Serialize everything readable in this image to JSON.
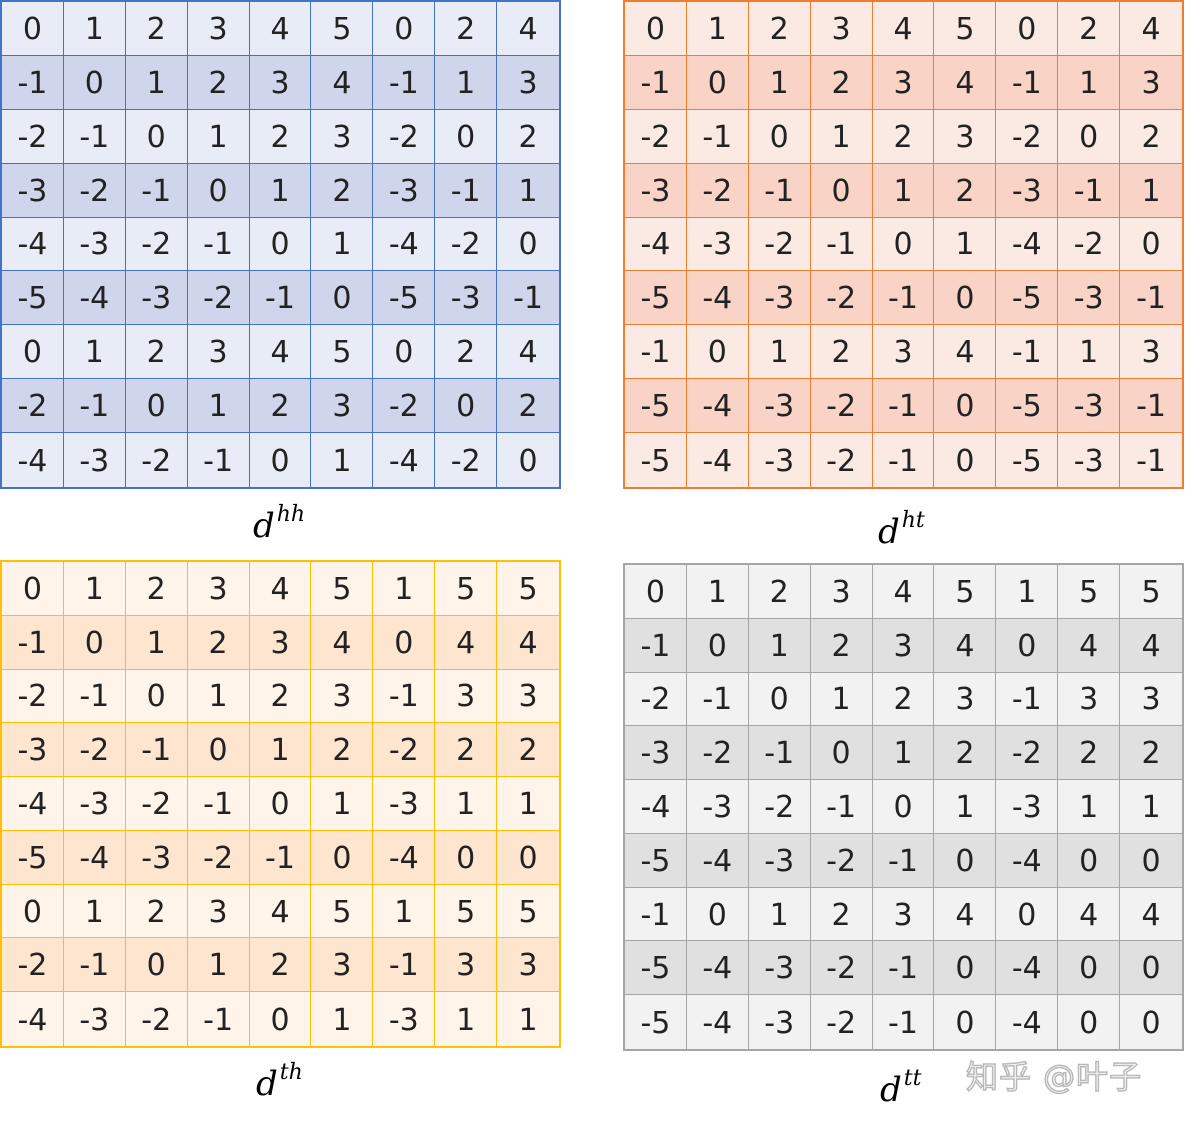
{
  "matrices": [
    {
      "id": "hh",
      "label_base": "d",
      "label_sup": "hh",
      "border_color": "#4472c4",
      "fill_light": "#e8ecf6",
      "fill_dark": "#cfd5ea",
      "rows": [
        [
          "0",
          "1",
          "2",
          "3",
          "4",
          "5",
          "0",
          "2",
          "4"
        ],
        [
          "-1",
          "0",
          "1",
          "2",
          "3",
          "4",
          "-1",
          "1",
          "3"
        ],
        [
          "-2",
          "-1",
          "0",
          "1",
          "2",
          "3",
          "-2",
          "0",
          "2"
        ],
        [
          "-3",
          "-2",
          "-1",
          "0",
          "1",
          "2",
          "-3",
          "-1",
          "1"
        ],
        [
          "-4",
          "-3",
          "-2",
          "-1",
          "0",
          "1",
          "-4",
          "-2",
          "0"
        ],
        [
          "-5",
          "-4",
          "-3",
          "-2",
          "-1",
          "0",
          "-5",
          "-3",
          "-1"
        ],
        [
          "0",
          "1",
          "2",
          "3",
          "4",
          "5",
          "0",
          "2",
          "4"
        ],
        [
          "-2",
          "-1",
          "0",
          "1",
          "2",
          "3",
          "-2",
          "0",
          "2"
        ],
        [
          "-4",
          "-3",
          "-2",
          "-1",
          "0",
          "1",
          "-4",
          "-2",
          "0"
        ]
      ]
    },
    {
      "id": "ht",
      "label_base": "d",
      "label_sup": "ht",
      "border_color": "#ed7d31",
      "fill_light": "#fbe9e4",
      "fill_dark": "#f8d3c6",
      "rows": [
        [
          "0",
          "1",
          "2",
          "3",
          "4",
          "5",
          "0",
          "2",
          "4"
        ],
        [
          "-1",
          "0",
          "1",
          "2",
          "3",
          "4",
          "-1",
          "1",
          "3"
        ],
        [
          "-2",
          "-1",
          "0",
          "1",
          "2",
          "3",
          "-2",
          "0",
          "2"
        ],
        [
          "-3",
          "-2",
          "-1",
          "0",
          "1",
          "2",
          "-3",
          "-1",
          "1"
        ],
        [
          "-4",
          "-3",
          "-2",
          "-1",
          "0",
          "1",
          "-4",
          "-2",
          "0"
        ],
        [
          "-5",
          "-4",
          "-3",
          "-2",
          "-1",
          "0",
          "-5",
          "-3",
          "-1"
        ],
        [
          "-1",
          "0",
          "1",
          "2",
          "3",
          "4",
          "-1",
          "1",
          "3"
        ],
        [
          "-5",
          "-4",
          "-3",
          "-2",
          "-1",
          "0",
          "-5",
          "-3",
          "-1"
        ],
        [
          "-5",
          "-4",
          "-3",
          "-2",
          "-1",
          "0",
          "-5",
          "-3",
          "-1"
        ]
      ]
    },
    {
      "id": "th",
      "label_base": "d",
      "label_sup": "th",
      "border_color": "#ffc000",
      "fill_light": "#fef4e9",
      "fill_dark": "#fde5d0",
      "rows": [
        [
          "0",
          "1",
          "2",
          "3",
          "4",
          "5",
          "1",
          "5",
          "5"
        ],
        [
          "-1",
          "0",
          "1",
          "2",
          "3",
          "4",
          "0",
          "4",
          "4"
        ],
        [
          "-2",
          "-1",
          "0",
          "1",
          "2",
          "3",
          "-1",
          "3",
          "3"
        ],
        [
          "-3",
          "-2",
          "-1",
          "0",
          "1",
          "2",
          "-2",
          "2",
          "2"
        ],
        [
          "-4",
          "-3",
          "-2",
          "-1",
          "0",
          "1",
          "-3",
          "1",
          "1"
        ],
        [
          "-5",
          "-4",
          "-3",
          "-2",
          "-1",
          "0",
          "-4",
          "0",
          "0"
        ],
        [
          "0",
          "1",
          "2",
          "3",
          "4",
          "5",
          "1",
          "5",
          "5"
        ],
        [
          "-2",
          "-1",
          "0",
          "1",
          "2",
          "3",
          "-1",
          "3",
          "3"
        ],
        [
          "-4",
          "-3",
          "-2",
          "-1",
          "0",
          "1",
          "-3",
          "1",
          "1"
        ]
      ]
    },
    {
      "id": "tt",
      "label_base": "d",
      "label_sup": "tt",
      "border_color": "#a5a5a5",
      "fill_light": "#f2f2f2",
      "fill_dark": "#e0e0e0",
      "rows": [
        [
          "0",
          "1",
          "2",
          "3",
          "4",
          "5",
          "1",
          "5",
          "5"
        ],
        [
          "-1",
          "0",
          "1",
          "2",
          "3",
          "4",
          "0",
          "4",
          "4"
        ],
        [
          "-2",
          "-1",
          "0",
          "1",
          "2",
          "3",
          "-1",
          "3",
          "3"
        ],
        [
          "-3",
          "-2",
          "-1",
          "0",
          "1",
          "2",
          "-2",
          "2",
          "2"
        ],
        [
          "-4",
          "-3",
          "-2",
          "-1",
          "0",
          "1",
          "-3",
          "1",
          "1"
        ],
        [
          "-5",
          "-4",
          "-3",
          "-2",
          "-1",
          "0",
          "-4",
          "0",
          "0"
        ],
        [
          "-1",
          "0",
          "1",
          "2",
          "3",
          "4",
          "0",
          "4",
          "4"
        ],
        [
          "-5",
          "-4",
          "-3",
          "-2",
          "-1",
          "0",
          "-4",
          "0",
          "0"
        ],
        [
          "-5",
          "-4",
          "-3",
          "-2",
          "-1",
          "0",
          "-4",
          "0",
          "0"
        ]
      ]
    }
  ],
  "watermark": "知乎 @叶子"
}
